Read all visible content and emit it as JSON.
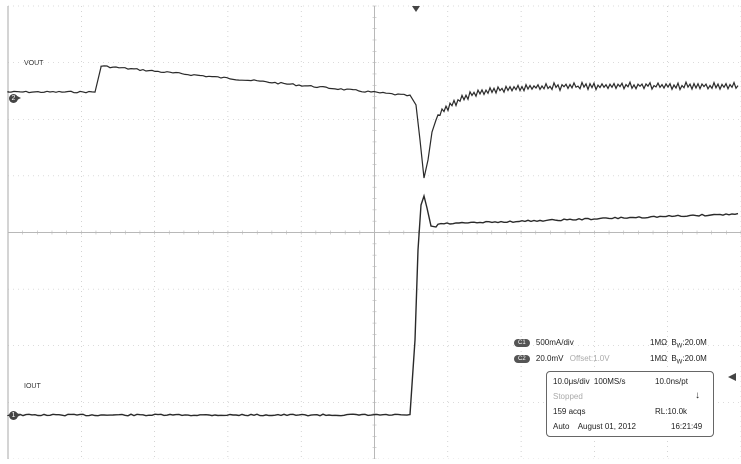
{
  "channels": [
    {
      "id": "C1",
      "marker": "1",
      "label": "IOUT",
      "scale": "500mA/div",
      "impedance": "1MΩ",
      "bw_prefix": "B",
      "bw_sub": "W",
      "bw_value": ":20.0M"
    },
    {
      "id": "C2",
      "marker": "2",
      "label": "VOUT",
      "scale": "20.0mV",
      "offset": "Offset:1.0V",
      "impedance": "1MΩ",
      "bw_prefix": "B",
      "bw_sub": "W",
      "bw_value": ":20.0M"
    }
  ],
  "acquisition": {
    "timebase": "10.0μs/div",
    "sample_rate": "100MS/s",
    "resolution": "10.0ns/pt",
    "state": "Stopped",
    "acqs": "159 acqs",
    "record_length": "RL:10.0k",
    "mode": "Auto",
    "date": "August 01, 2012",
    "time": "16:21:49"
  },
  "colors": {
    "trace": "#2a2a2a",
    "grid": "#b8b8b8",
    "marker": "#444444"
  },
  "icons": {
    "trigger_top": "trigger-position-icon",
    "trigger_level": "trigger-level-icon",
    "run_state": "down-arrow-icon"
  }
}
